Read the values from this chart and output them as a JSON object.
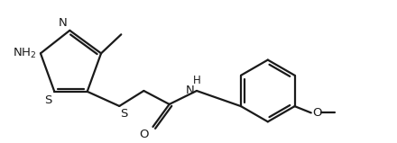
{
  "bg_color": "#ffffff",
  "line_color": "#1a1a1a",
  "line_width": 1.6,
  "font_size": 9.5,
  "fig_width": 4.4,
  "fig_height": 1.59,
  "xlim": [
    -0.3,
    10.2
  ],
  "ylim": [
    0.1,
    3.9
  ]
}
